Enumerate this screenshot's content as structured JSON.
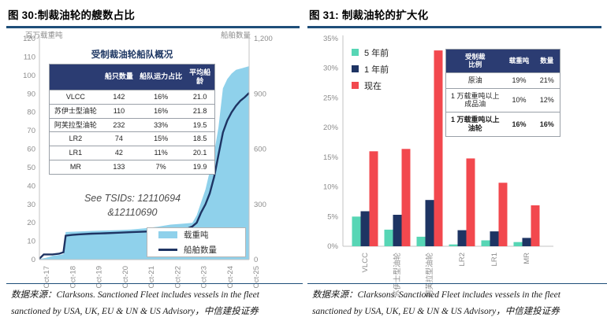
{
  "figures": [
    {
      "title": "图 30:制裁油轮的艘数占比",
      "source": [
        "数据来源：Clarksons. Sanctioned Fleet includes vessels in the fleet",
        "sanctioned by USA, UK, EU & UN & US Advisory，中信建投证券"
      ]
    },
    {
      "title": "图 31: 制裁油轮的扩大化",
      "source": [
        "数据来源：Clarksons. Sanctioned Fleet includes vessels in the fleet",
        "sanctioned by USA, UK, EU & UN & US Advisory，中信建投证券"
      ]
    }
  ],
  "chart_data": [
    {
      "type": "area",
      "subtype": "area+line combo, dual axis",
      "left_axis": {
        "label": "百万载重吨",
        "lim": [
          0,
          120
        ],
        "ticks": [
          0,
          10,
          20,
          30,
          40,
          50,
          60,
          70,
          80,
          90,
          100,
          110,
          120
        ]
      },
      "right_axis": {
        "label": "船舶数量",
        "lim": [
          0,
          1200
        ],
        "ticks": [
          {
            "v": 0,
            "label": "0"
          },
          {
            "v": 300,
            "label": "300"
          },
          {
            "v": 600,
            "label": "600"
          },
          {
            "v": 900,
            "label": "900"
          },
          {
            "v": 1200,
            "label": "1,200"
          }
        ]
      },
      "x_ticks": [
        "Oct-17",
        "Oct-18",
        "Oct-19",
        "Oct-20",
        "Oct-21",
        "Oct-22",
        "Oct-23",
        "Oct-24",
        "Oct-25"
      ],
      "x_months_range": [
        0,
        96
      ],
      "grid": false,
      "legend_position": "bottom-right-box",
      "series": [
        {
          "name": "载重吨",
          "type": "area",
          "axis": "left",
          "color": "#8fd1eb",
          "points": [
            [
              0,
              0.3
            ],
            [
              3,
              1
            ],
            [
              6,
              2
            ],
            [
              9,
              2.5
            ],
            [
              11,
              3
            ],
            [
              12,
              15
            ],
            [
              18,
              15.3
            ],
            [
              24,
              15.6
            ],
            [
              30,
              15.8
            ],
            [
              36,
              16
            ],
            [
              42,
              16.3
            ],
            [
              48,
              17
            ],
            [
              54,
              17.8
            ],
            [
              60,
              19
            ],
            [
              66,
              19.5
            ],
            [
              70,
              20
            ],
            [
              72,
              24
            ],
            [
              74,
              31
            ],
            [
              76,
              38
            ],
            [
              78,
              48
            ],
            [
              80,
              58
            ],
            [
              82,
              72
            ],
            [
              84,
              93
            ],
            [
              86,
              98
            ],
            [
              88,
              101
            ],
            [
              90,
              103
            ],
            [
              93,
              104
            ],
            [
              96,
              105
            ]
          ]
        },
        {
          "name": "船舶数量",
          "type": "line",
          "axis": "right",
          "color": "#1e3463",
          "points": [
            [
              0,
              5
            ],
            [
              2,
              28
            ],
            [
              6,
              28
            ],
            [
              9,
              32
            ],
            [
              11,
              40
            ],
            [
              12,
              130
            ],
            [
              15,
              134
            ],
            [
              18,
              137
            ],
            [
              24,
              141
            ],
            [
              30,
              143
            ],
            [
              36,
              146
            ],
            [
              42,
              149
            ],
            [
              48,
              152
            ],
            [
              54,
              155
            ],
            [
              60,
              158
            ],
            [
              64,
              162
            ],
            [
              68,
              170
            ],
            [
              70,
              180
            ],
            [
              72,
              200
            ],
            [
              74,
              255
            ],
            [
              76,
              300
            ],
            [
              78,
              360
            ],
            [
              80,
              450
            ],
            [
              82,
              570
            ],
            [
              84,
              690
            ],
            [
              86,
              755
            ],
            [
              88,
              800
            ],
            [
              90,
              835
            ],
            [
              92,
              862
            ],
            [
              94,
              882
            ],
            [
              96,
              905
            ]
          ]
        }
      ],
      "annotation": [
        "See TSIDs: 12110694",
        "&12110690"
      ],
      "overlay_table": {
        "title": "受制裁油轮船队概况",
        "headers": [
          "",
          "船只数量",
          "船队运力占比",
          "平均船龄"
        ],
        "rows": [
          [
            "VLCC",
            "142",
            "16%",
            "21.0"
          ],
          [
            "苏伊士型油轮",
            "110",
            "16%",
            "21.8"
          ],
          [
            "阿芙拉型油轮",
            "232",
            "33%",
            "19.5"
          ],
          [
            "LR2",
            "74",
            "15%",
            "18.5"
          ],
          [
            "LR1",
            "42",
            "11%",
            "20.1"
          ],
          [
            "MR",
            "133",
            "7%",
            "19.9"
          ]
        ]
      }
    },
    {
      "type": "bar",
      "categories": [
        "VLCC",
        "苏伊士型油轮",
        "阿芙拉型油轮",
        "LR2",
        "LR1",
        "MR"
      ],
      "series": [
        {
          "name": "5 年前",
          "color": "#57d6b5",
          "values": [
            5.0,
            2.8,
            1.6,
            0.3,
            1.0,
            0.7
          ]
        },
        {
          "name": "1 年前",
          "color": "#1e3463",
          "values": [
            5.9,
            5.3,
            7.8,
            2.7,
            2.5,
            1.4
          ]
        },
        {
          "name": "现在",
          "color": "#f2484e",
          "values": [
            16.0,
            16.4,
            33.0,
            14.8,
            10.7,
            6.9
          ]
        }
      ],
      "ylabel": "",
      "ylim": [
        0,
        35
      ],
      "y_ticks": [
        "0%",
        "5%",
        "10%",
        "15%",
        "20%",
        "25%",
        "30%",
        "35%"
      ],
      "grid": false,
      "legend_position": "top-left",
      "overlay_table": {
        "headers": [
          "受制裁\n比例",
          "载重吨",
          "数量"
        ],
        "rows": [
          {
            "label": "原油",
            "dwt": "19%",
            "count": "21%",
            "bold": false
          },
          {
            "label": "1 万载重吨以上\n成品油",
            "dwt": "10%",
            "count": "12%",
            "bold": false
          },
          {
            "label": "1 万载重吨以上\n油轮",
            "dwt": "16%",
            "count": "16%",
            "bold": true
          }
        ]
      }
    }
  ],
  "colors": {
    "title_rule": "#1e4e79",
    "table_header_bg": "#2b3c72",
    "axis_text": "#8c8c8c",
    "axis_line": "#c3c3c3"
  }
}
